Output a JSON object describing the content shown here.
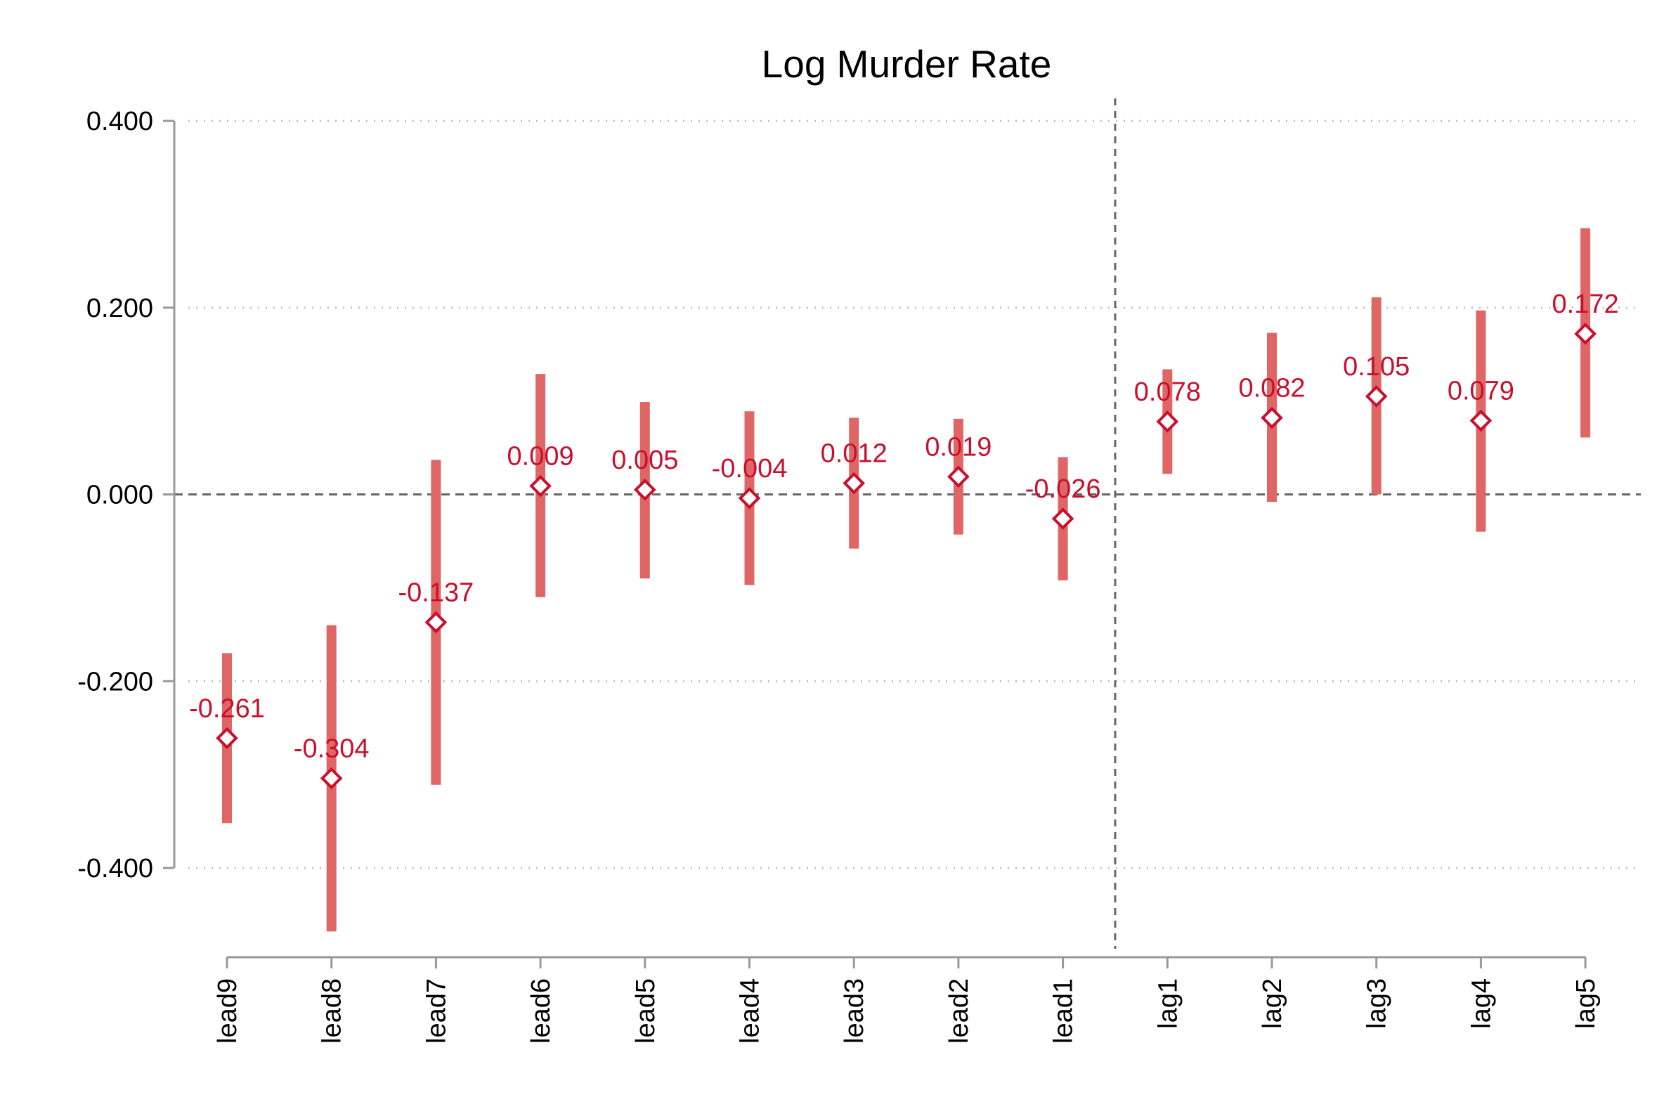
{
  "chart_data": {
    "type": "scatter",
    "title": "Log Murder Rate",
    "xlabel": "",
    "ylabel": "",
    "categories": [
      "lead9",
      "lead8",
      "lead7",
      "lead6",
      "lead5",
      "lead4",
      "lead3",
      "lead2",
      "lead1",
      "lag1",
      "lag2",
      "lag3",
      "lag4",
      "lag5"
    ],
    "estimates": [
      -0.261,
      -0.304,
      -0.137,
      0.009,
      0.005,
      -0.004,
      0.012,
      0.019,
      -0.026,
      0.078,
      0.082,
      0.105,
      0.079,
      0.172
    ],
    "data_labels": [
      "-0.261",
      "-0.304",
      "-0.137",
      "0.009",
      "0.005",
      "-0.004",
      "0.012",
      "0.019",
      "-0.026",
      "0.078",
      "0.082",
      "0.105",
      "0.079",
      "0.172"
    ],
    "ci_lower": [
      -0.352,
      -0.468,
      -0.311,
      -0.11,
      -0.09,
      -0.097,
      -0.058,
      -0.043,
      -0.092,
      0.022,
      -0.008,
      0.0,
      -0.04,
      0.061
    ],
    "ci_upper": [
      -0.17,
      -0.14,
      0.037,
      0.129,
      0.099,
      0.089,
      0.082,
      0.081,
      0.04,
      0.134,
      0.173,
      0.211,
      0.197,
      0.285
    ],
    "ylim": [
      -0.49,
      0.43
    ],
    "yticks": [
      -0.4,
      -0.2,
      0.0,
      0.2,
      0.4
    ],
    "ytick_labels": [
      "-0.400",
      "-0.200",
      "0.000",
      "0.200",
      "0.400"
    ],
    "reference_line_y": 0,
    "reference_line_x_between": [
      "lead1",
      "lag1"
    ],
    "grid": true,
    "colors": {
      "ci_bar": "#e06666",
      "marker": "#c8102e",
      "label": "#c8102e",
      "axis": "#999999",
      "grid": "#bbbbbb",
      "refline": "#666666"
    }
  }
}
